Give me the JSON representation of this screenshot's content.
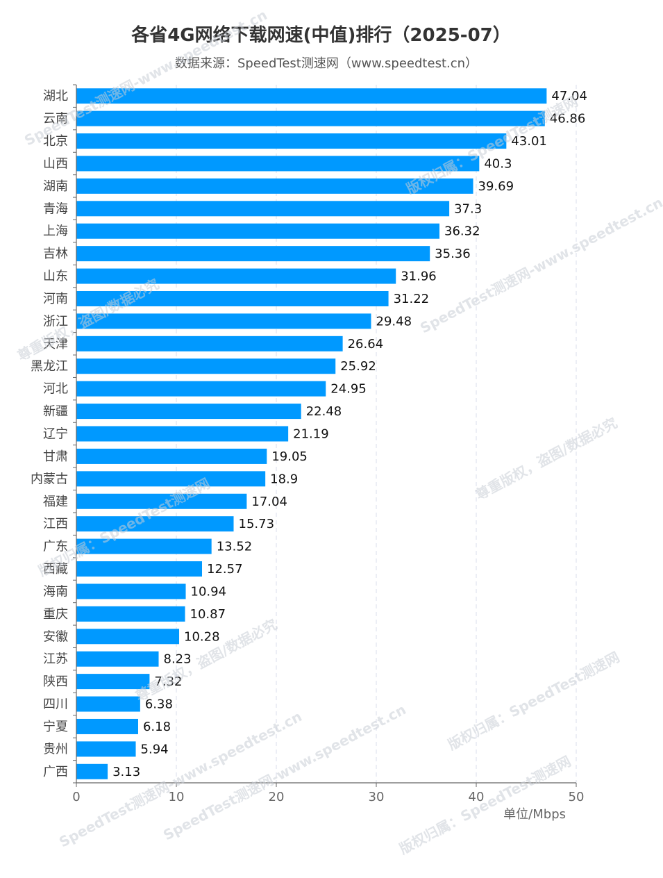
{
  "chart_data": {
    "type": "bar",
    "orientation": "horizontal",
    "title": "各省4G网络下载网速(中值)排行（2025-07）",
    "subtitle": "数据来源：SpeedTest测速网（www.speedtest.cn）",
    "unit_label": "单位/Mbps",
    "categories": [
      "湖北",
      "云南",
      "北京",
      "山西",
      "湖南",
      "青海",
      "上海",
      "吉林",
      "山东",
      "河南",
      "浙江",
      "天津",
      "黑龙江",
      "河北",
      "新疆",
      "辽宁",
      "甘肃",
      "内蒙古",
      "福建",
      "江西",
      "广东",
      "西藏",
      "海南",
      "重庆",
      "安徽",
      "江苏",
      "陕西",
      "四川",
      "宁夏",
      "贵州",
      "广西"
    ],
    "values": [
      47.04,
      46.86,
      43.01,
      40.3,
      39.69,
      37.3,
      36.32,
      35.36,
      31.96,
      31.22,
      29.48,
      26.64,
      25.92,
      24.95,
      22.48,
      21.19,
      19.05,
      18.9,
      17.04,
      15.73,
      13.52,
      12.57,
      10.94,
      10.87,
      10.28,
      8.23,
      7.32,
      6.38,
      6.18,
      5.94,
      3.13
    ],
    "value_labels": [
      "47.04",
      "46.86",
      "43.01",
      "40.3",
      "39.69",
      "37.3",
      "36.32",
      "35.36",
      "31.96",
      "31.22",
      "29.48",
      "26.64",
      "25.92",
      "24.95",
      "22.48",
      "21.19",
      "19.05",
      "18.9",
      "17.04",
      "15.73",
      "13.52",
      "12.57",
      "10.94",
      "10.87",
      "10.28",
      "8.23",
      "7.32",
      "6.38",
      "6.18",
      "5.94",
      "3.13"
    ],
    "xlim": [
      0,
      50
    ],
    "x_ticks": [
      "0",
      "10",
      "20",
      "30",
      "40",
      "50"
    ],
    "grid": true,
    "bar_color": "#0099ff",
    "watermarks": [
      "SpeedTest测速网-www.speedtest.cn",
      "版权归属：SpeedTest测速网",
      "尊重版权，盗图/数据必究"
    ]
  }
}
